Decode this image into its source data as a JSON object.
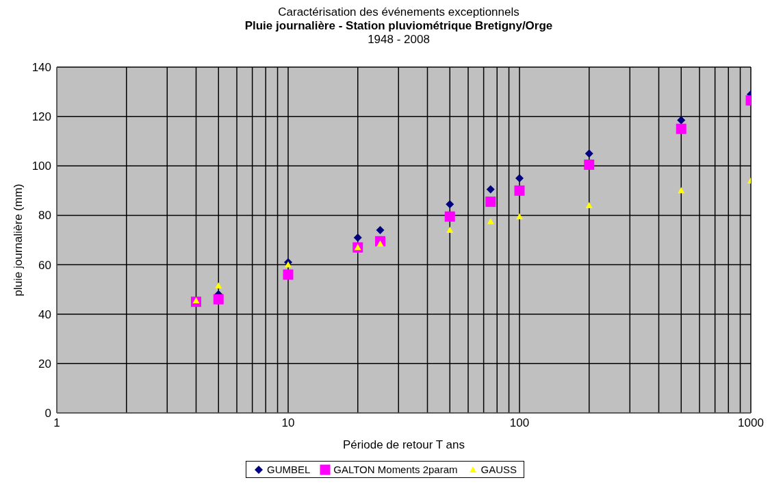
{
  "chart_data": {
    "type": "scatter",
    "title": "Caractérisation des événements exceptionnels",
    "subtitle": "Pluie journalière - Station  pluviométrique Bretigny/Orge\n1948 - 2008",
    "xlabel": "Période de retour T ans",
    "ylabel": "pluie journalière (mm)",
    "x": [
      4,
      5,
      10,
      20,
      25,
      50,
      75,
      100,
      200,
      500,
      1000
    ],
    "series": [
      {
        "name": "GUMBEL",
        "color": "#000080",
        "marker": "diamond",
        "values": [
          null,
          48,
          61,
          71,
          74,
          84.5,
          90.5,
          95,
          105,
          118.5,
          129
        ]
      },
      {
        "name": "GALTON  Moments  2param",
        "color": "#ff00ff",
        "marker": "square",
        "values": [
          45,
          46,
          56,
          67,
          69.5,
          79.5,
          85.5,
          90,
          100.5,
          115,
          126.5
        ]
      },
      {
        "name": "GAUSS",
        "color": "#ffff00",
        "marker": "triangle",
        "values": [
          45.5,
          51.5,
          60,
          67,
          68.5,
          74,
          77.5,
          79.5,
          84,
          90,
          94
        ]
      }
    ],
    "log": "x",
    "xlim": [
      1,
      1000
    ],
    "xticks": [
      1,
      {
        "value": 2,
        "label": null
      },
      {
        "value": 3,
        "label": null
      },
      {
        "value": 4,
        "label": null
      },
      {
        "value": 5,
        "label": null
      },
      {
        "value": 6,
        "label": null
      },
      {
        "value": 7,
        "label": null
      },
      {
        "value": 8,
        "label": null
      },
      {
        "value": 9,
        "label": null
      },
      10,
      {
        "value": 20,
        "label": null
      },
      {
        "value": 30,
        "label": null
      },
      {
        "value": 40,
        "label": null
      },
      {
        "value": 50,
        "label": null
      },
      {
        "value": 60,
        "label": null
      },
      {
        "value": 70,
        "label": null
      },
      {
        "value": 80,
        "label": null
      },
      {
        "value": 90,
        "label": null
      },
      100,
      {
        "value": 200,
        "label": null
      },
      {
        "value": 300,
        "label": null
      },
      {
        "value": 400,
        "label": null
      },
      {
        "value": 500,
        "label": null
      },
      {
        "value": 600,
        "label": null
      },
      {
        "value": 700,
        "label": null
      },
      {
        "value": 800,
        "label": null
      },
      {
        "value": 900,
        "label": null
      },
      1000
    ],
    "ylim": [
      0,
      140
    ],
    "yticks": [
      0,
      20,
      40,
      60,
      80,
      100,
      120,
      140
    ],
    "grid": true,
    "legend": "bottom"
  }
}
